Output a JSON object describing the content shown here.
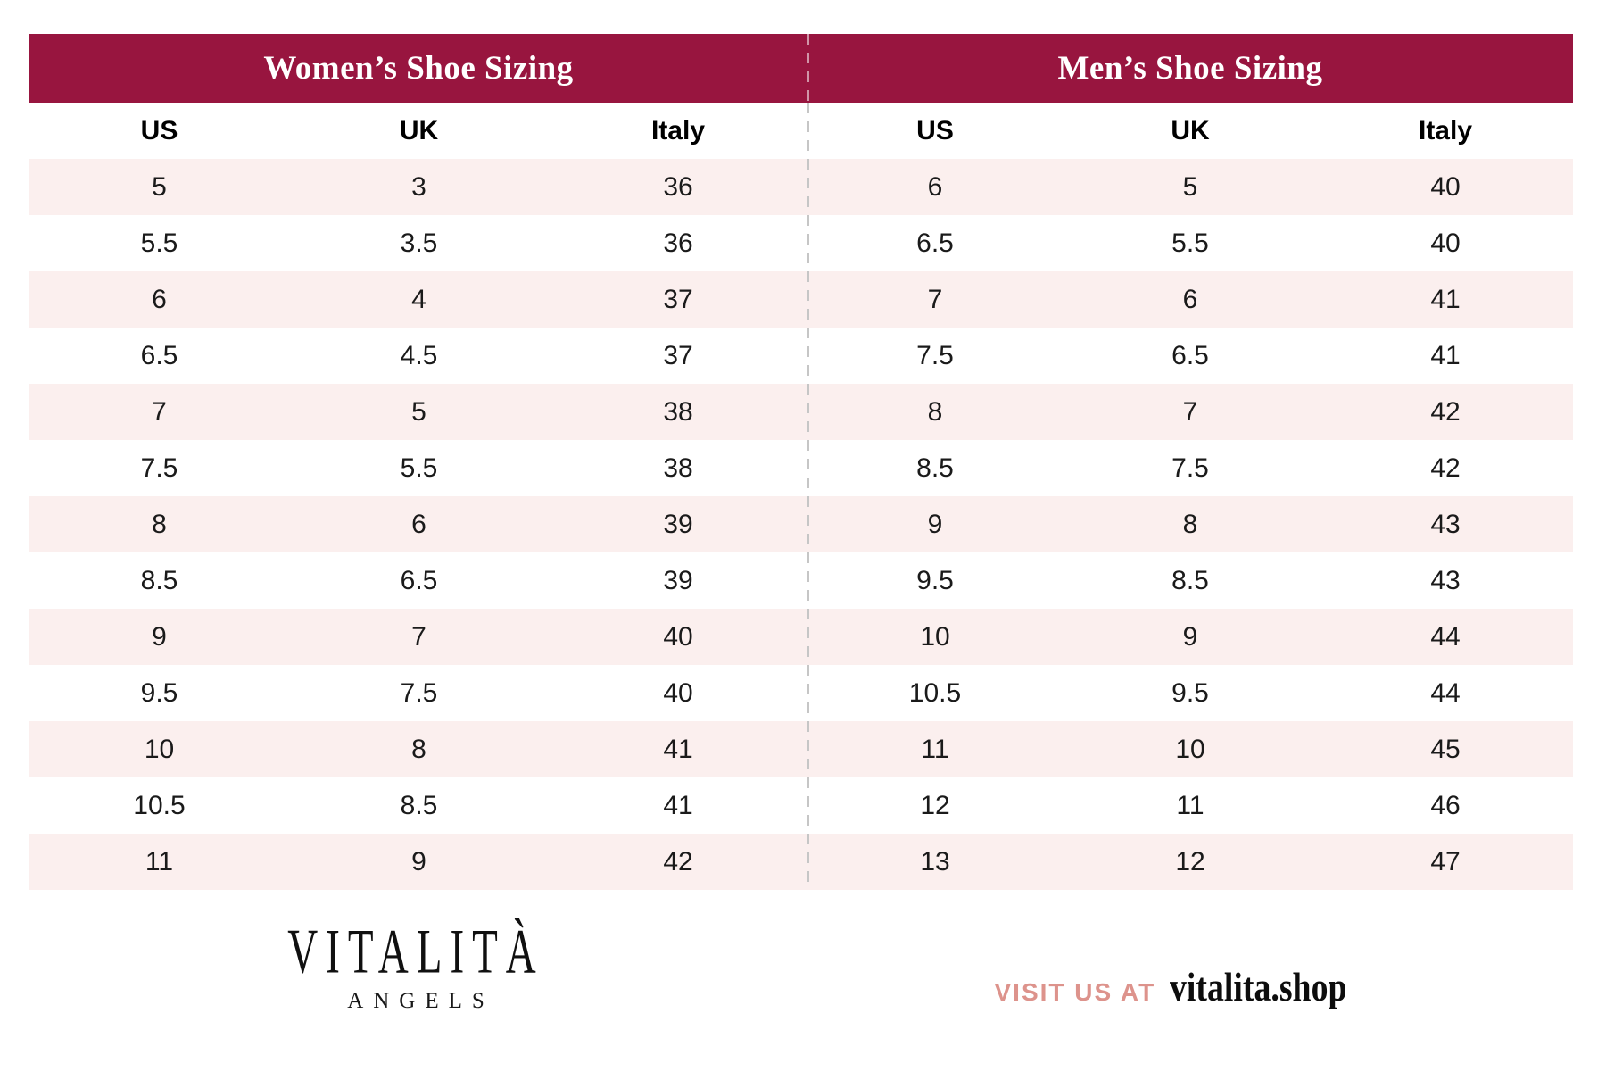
{
  "colors": {
    "header_bg": "#98153F",
    "stripe_row_bg": "#FBEFEE",
    "visit_label_color": "#DD938C",
    "divider_color": "#C6C6C6"
  },
  "tables": [
    {
      "title": "Women’s Shoe Sizing",
      "columns": [
        "US",
        "UK",
        "Italy"
      ],
      "rows": [
        [
          "5",
          "3",
          "36"
        ],
        [
          "5.5",
          "3.5",
          "36"
        ],
        [
          "6",
          "4",
          "37"
        ],
        [
          "6.5",
          "4.5",
          "37"
        ],
        [
          "7",
          "5",
          "38"
        ],
        [
          "7.5",
          "5.5",
          "38"
        ],
        [
          "8",
          "6",
          "39"
        ],
        [
          "8.5",
          "6.5",
          "39"
        ],
        [
          "9",
          "7",
          "40"
        ],
        [
          "9.5",
          "7.5",
          "40"
        ],
        [
          "10",
          "8",
          "41"
        ],
        [
          "10.5",
          "8.5",
          "41"
        ],
        [
          "11",
          "9",
          "42"
        ]
      ]
    },
    {
      "title": "Men’s Shoe Sizing",
      "columns": [
        "US",
        "UK",
        "Italy"
      ],
      "rows": [
        [
          "6",
          "5",
          "40"
        ],
        [
          "6.5",
          "5.5",
          "40"
        ],
        [
          "7",
          "6",
          "41"
        ],
        [
          "7.5",
          "6.5",
          "41"
        ],
        [
          "8",
          "7",
          "42"
        ],
        [
          "8.5",
          "7.5",
          "42"
        ],
        [
          "9",
          "8",
          "43"
        ],
        [
          "9.5",
          "8.5",
          "43"
        ],
        [
          "10",
          "9",
          "44"
        ],
        [
          "10.5",
          "9.5",
          "44"
        ],
        [
          "11",
          "10",
          "45"
        ],
        [
          "12",
          "11",
          "46"
        ],
        [
          "13",
          "12",
          "47"
        ]
      ]
    }
  ],
  "footer": {
    "brand_name": "VITALITÀ",
    "brand_sub": "ANGELS",
    "visit_label": "VISIT US AT",
    "site": "vitalita.shop"
  }
}
